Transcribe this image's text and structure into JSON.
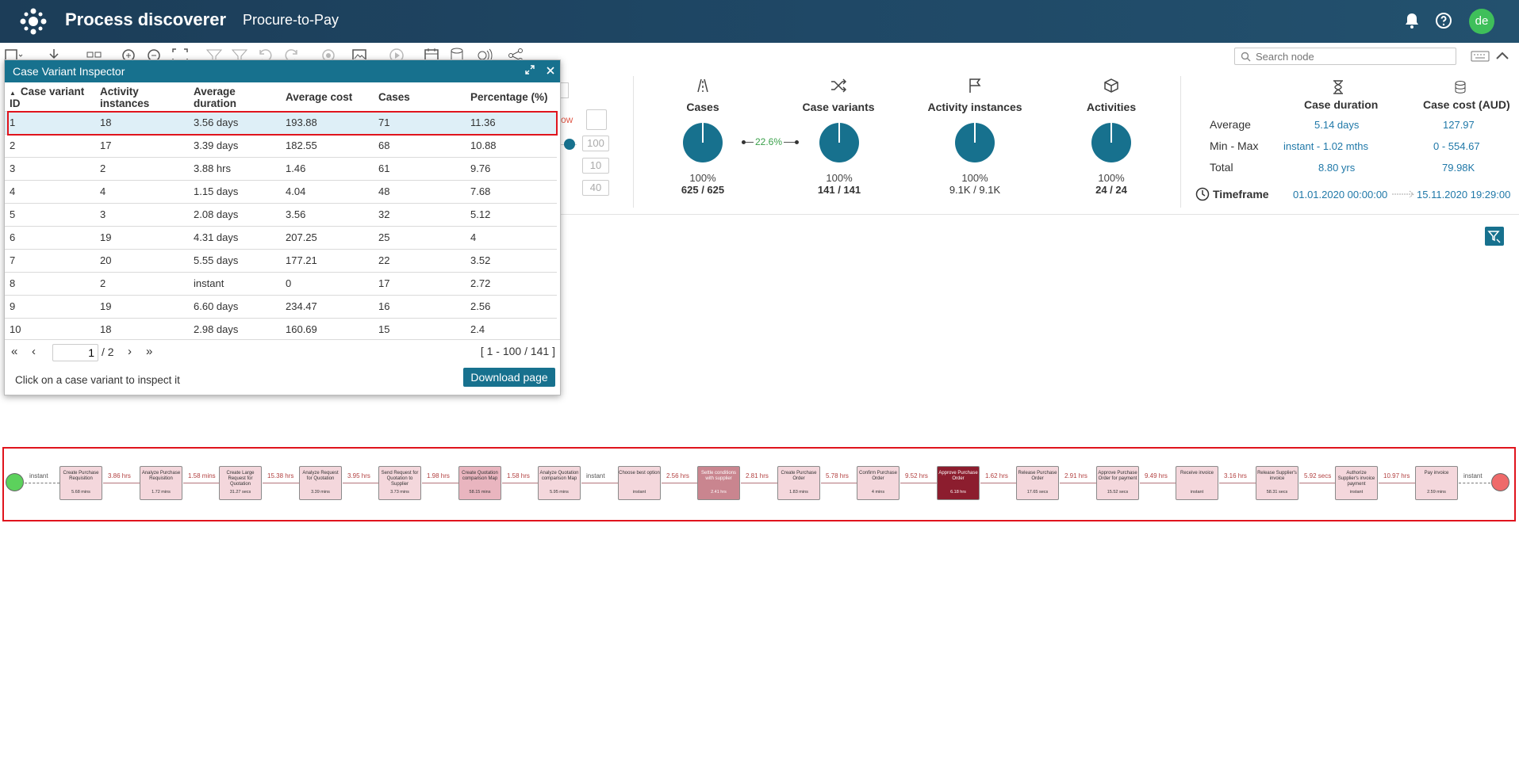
{
  "header": {
    "app_title": "Process discoverer",
    "project": "Procure-to-Pay",
    "avatar_initials": "de"
  },
  "toolbar": {
    "search_placeholder": "Search node"
  },
  "peek": {
    "label_fragment": "ow",
    "values": [
      "100",
      "10",
      "40"
    ]
  },
  "stats": {
    "cases": {
      "label": "Cases",
      "percent": "100%",
      "count": "625 / 625"
    },
    "variant_ratio": "22.6%",
    "case_variants": {
      "label": "Case variants",
      "percent": "100%",
      "count": "141 / 141"
    },
    "activity_instances": {
      "label": "Activity instances",
      "percent": "100%",
      "count": "9.1K / 9.1K"
    },
    "activities": {
      "label": "Activities",
      "percent": "100%",
      "count": "24 / 24"
    }
  },
  "duration": {
    "col1": "Case duration",
    "col2": "Case cost (AUD)",
    "rows": [
      {
        "label": "Average",
        "v1": "5.14 days",
        "v2": "127.97"
      },
      {
        "label": "Min - Max",
        "v1": "instant - 1.02 mths",
        "v2": "0 - 554.67"
      },
      {
        "label": "Total",
        "v1": "8.80 yrs",
        "v2": "79.98K"
      }
    ],
    "timeframe_label": "Timeframe",
    "timeframe_start": "01.01.2020 00:00:00",
    "timeframe_end": "15.11.2020 19:29:00"
  },
  "inspector": {
    "title": "Case Variant Inspector",
    "columns": [
      "Case variant ID",
      "Activity instances",
      "Average duration",
      "Average cost",
      "Cases",
      "Percentage (%)"
    ],
    "rows": [
      [
        "1",
        "18",
        "3.56 days",
        "193.88",
        "71",
        "11.36"
      ],
      [
        "2",
        "17",
        "3.39 days",
        "182.55",
        "68",
        "10.88"
      ],
      [
        "3",
        "2",
        "3.88 hrs",
        "1.46",
        "61",
        "9.76"
      ],
      [
        "4",
        "4",
        "1.15 days",
        "4.04",
        "48",
        "7.68"
      ],
      [
        "5",
        "3",
        "2.08 days",
        "3.56",
        "32",
        "5.12"
      ],
      [
        "6",
        "19",
        "4.31 days",
        "207.25",
        "25",
        "4"
      ],
      [
        "7",
        "20",
        "5.55 days",
        "177.21",
        "22",
        "3.52"
      ],
      [
        "8",
        "2",
        "instant",
        "0",
        "17",
        "2.72"
      ],
      [
        "9",
        "19",
        "6.60 days",
        "234.47",
        "16",
        "2.56"
      ],
      [
        "10",
        "18",
        "2.98 days",
        "160.69",
        "15",
        "2.4"
      ]
    ],
    "page_value": "1",
    "page_total": "/ 2",
    "range": "[ 1 - 100 / 141 ]",
    "hint": "Click on a case variant to inspect it",
    "download_label": "Download page"
  },
  "process_map": {
    "edges": [
      "instant",
      "3.86 hrs",
      "1.58 mins",
      "15.38 hrs",
      "3.95 hrs",
      "1.98 hrs",
      "1.58 hrs",
      "instant",
      "2.56 hrs",
      "2.81 hrs",
      "5.78 hrs",
      "9.52 hrs",
      "1.62 hrs",
      "2.91 hrs",
      "9.49 hrs",
      "3.16 hrs",
      "5.92 secs",
      "10.97 hrs",
      "instant"
    ],
    "nodes": [
      {
        "name": "Create Purchase Requisition",
        "dur": "5.68 mins",
        "color": "#f4d7dc"
      },
      {
        "name": "Analyze Purchase Requisition",
        "dur": "1.72 mins",
        "color": "#f4d7dc"
      },
      {
        "name": "Create Large Request for Quotation",
        "dur": "31.27 secs",
        "color": "#f4d7dc"
      },
      {
        "name": "Analyze Request for Quotation",
        "dur": "3.39 mins",
        "color": "#f4d7dc"
      },
      {
        "name": "Send Request for Quotation to Supplier",
        "dur": "3.73 mins",
        "color": "#f4d7dc"
      },
      {
        "name": "Create Quotation comparison Map",
        "dur": "58.15 mins",
        "color": "#e9b5bf"
      },
      {
        "name": "Analyze Quotation comparison Map",
        "dur": "5.95 mins",
        "color": "#f4d7dc"
      },
      {
        "name": "Choose best option",
        "dur": "instant",
        "color": "#f4d7dc"
      },
      {
        "name": "Settle conditions with supplier",
        "dur": "2.41 hrs",
        "color": "#c9858f"
      },
      {
        "name": "Create Purchase Order",
        "dur": "1.83 mins",
        "color": "#f4d7dc"
      },
      {
        "name": "Confirm Purchase Order",
        "dur": "4 mins",
        "color": "#f4d7dc"
      },
      {
        "name": "Approve Purchase Order",
        "dur": "6.18 hrs",
        "color": "#8c1d2e"
      },
      {
        "name": "Release Purchase Order",
        "dur": "17.65 secs",
        "color": "#f4d7dc"
      },
      {
        "name": "Approve Purchase Order for payment",
        "dur": "15.52 secs",
        "color": "#f4d7dc"
      },
      {
        "name": "Receive invoice",
        "dur": "instant",
        "color": "#f4d7dc"
      },
      {
        "name": "Release Supplier's invoice",
        "dur": "58.31 secs",
        "color": "#f4d7dc"
      },
      {
        "name": "Authorize Supplier's invoice payment",
        "dur": "instant",
        "color": "#f4d7dc"
      },
      {
        "name": "Pay invoice",
        "dur": "2.59 mins",
        "color": "#f4d7dc"
      }
    ]
  }
}
